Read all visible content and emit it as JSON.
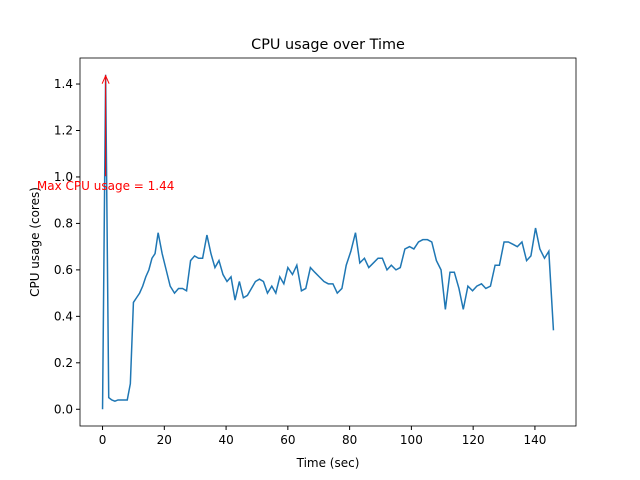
{
  "chart_data": {
    "type": "line",
    "title": "CPU usage over Time",
    "x_label": "Time (sec)",
    "y_label": "CPU usage (cores)",
    "x": [
      0,
      1,
      2,
      3,
      4,
      5,
      6,
      7,
      8,
      9,
      10,
      11,
      12,
      13,
      14,
      15,
      16,
      17,
      18,
      19.3,
      20.6,
      21.9,
      23.3,
      24.6,
      25.9,
      27.2,
      28.5,
      29.8,
      31.1,
      32.4,
      33.8,
      35.1,
      36.4,
      37.7,
      39.0,
      40.3,
      41.6,
      42.9,
      44.3,
      45.6,
      46.9,
      48.2,
      49.5,
      50.8,
      52.1,
      53.4,
      54.8,
      56.1,
      57.4,
      58.7,
      60.0,
      61.5,
      62.9,
      64.4,
      65.8,
      67.3,
      68.7,
      70.2,
      71.7,
      73.1,
      74.6,
      76.0,
      77.5,
      78.9,
      80.4,
      81.9,
      83.3,
      84.8,
      86.2,
      87.7,
      89.2,
      90.6,
      92.1,
      93.5,
      95.0,
      96.4,
      97.9,
      99.4,
      100.8,
      102.3,
      103.7,
      105.2,
      106.6,
      108.1,
      109.6,
      111.0,
      112.5,
      113.9,
      115.4,
      116.8,
      118.3,
      119.8,
      121.2,
      122.7,
      124.1,
      125.6,
      127.1,
      128.5,
      130.0,
      131.4,
      132.9,
      134.3,
      135.8,
      137.3,
      138.7,
      140.2,
      141.6,
      143.1,
      144.5,
      146.0
    ],
    "series": [
      {
        "name": "CPU usage",
        "color": "#1f77b4",
        "values": [
          0,
          1.44,
          0.05,
          0.04,
          0.035,
          0.04,
          0.04,
          0.04,
          0.04,
          0.11,
          0.46,
          0.48,
          0.5,
          0.53,
          0.57,
          0.6,
          0.65,
          0.67,
          0.76,
          0.67,
          0.6,
          0.53,
          0.5,
          0.52,
          0.52,
          0.51,
          0.64,
          0.66,
          0.65,
          0.65,
          0.75,
          0.67,
          0.61,
          0.64,
          0.58,
          0.55,
          0.57,
          0.47,
          0.55,
          0.48,
          0.49,
          0.52,
          0.55,
          0.56,
          0.55,
          0.5,
          0.53,
          0.5,
          0.57,
          0.54,
          0.61,
          0.58,
          0.62,
          0.51,
          0.52,
          0.61,
          0.59,
          0.57,
          0.55,
          0.54,
          0.54,
          0.5,
          0.52,
          0.62,
          0.68,
          0.76,
          0.63,
          0.65,
          0.61,
          0.63,
          0.65,
          0.65,
          0.6,
          0.62,
          0.6,
          0.61,
          0.69,
          0.7,
          0.69,
          0.72,
          0.73,
          0.73,
          0.72,
          0.64,
          0.6,
          0.43,
          0.59,
          0.59,
          0.52,
          0.43,
          0.53,
          0.51,
          0.53,
          0.54,
          0.52,
          0.53,
          0.62,
          0.62,
          0.72,
          0.72,
          0.71,
          0.7,
          0.72,
          0.64,
          0.66,
          0.78,
          0.69,
          0.65,
          0.68,
          0.34
        ]
      }
    ],
    "annotation": {
      "text": "Max CPU usage = 1.44",
      "color": "red",
      "x": 1,
      "y": 0.96,
      "point_index": 1
    },
    "xlim": [
      -7.3,
      153.3
    ],
    "ylim": [
      -0.072,
      1.512
    ],
    "xticks": [
      0,
      20,
      40,
      60,
      80,
      100,
      120,
      140
    ],
    "yticks": [
      {
        "value": 0,
        "label": "0.0"
      },
      0.2,
      0.4,
      0.6,
      0.8,
      {
        "value": 1,
        "label": "1.0"
      },
      1.2,
      1.4
    ]
  }
}
